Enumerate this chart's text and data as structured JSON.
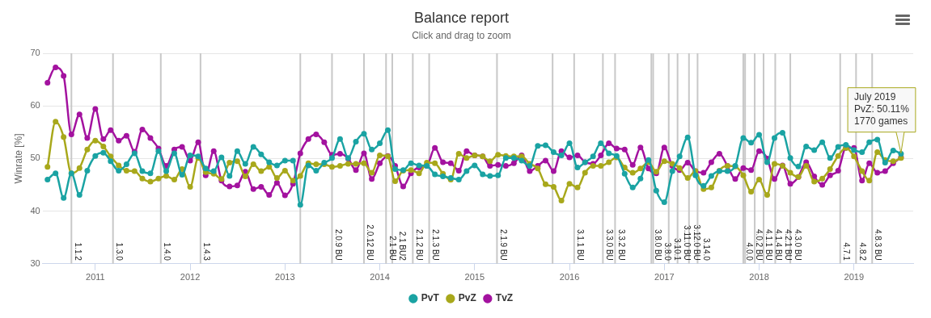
{
  "chart_data": {
    "type": "line",
    "title": "Balance report",
    "subtitle": "Click and drag to zoom",
    "ylabel": "Winrate [%]",
    "x": [
      "2010-07",
      "2010-08",
      "2010-09",
      "2010-10",
      "2010-11",
      "2010-12",
      "2011-01",
      "2011-02",
      "2011-03",
      "2011-04",
      "2011-05",
      "2011-06",
      "2011-07",
      "2011-08",
      "2011-09",
      "2011-10",
      "2011-11",
      "2011-12",
      "2012-01",
      "2012-02",
      "2012-03",
      "2012-04",
      "2012-05",
      "2012-06",
      "2012-07",
      "2012-08",
      "2012-09",
      "2012-10",
      "2012-11",
      "2012-12",
      "2013-01",
      "2013-02",
      "2013-03",
      "2013-04",
      "2013-05",
      "2013-06",
      "2013-07",
      "2013-08",
      "2013-09",
      "2013-10",
      "2013-11",
      "2013-12",
      "2014-01",
      "2014-02",
      "2014-03",
      "2014-04",
      "2014-05",
      "2014-06",
      "2014-07",
      "2014-08",
      "2014-09",
      "2014-10",
      "2014-11",
      "2014-12",
      "2015-01",
      "2015-02",
      "2015-03",
      "2015-04",
      "2015-05",
      "2015-06",
      "2015-07",
      "2015-08",
      "2015-09",
      "2015-10",
      "2015-11",
      "2015-12",
      "2016-01",
      "2016-02",
      "2016-03",
      "2016-04",
      "2016-05",
      "2016-06",
      "2016-07",
      "2016-08",
      "2016-09",
      "2016-10",
      "2016-11",
      "2016-12",
      "2017-01",
      "2017-02",
      "2017-03",
      "2017-04",
      "2017-05",
      "2017-06",
      "2017-07",
      "2017-08",
      "2017-09",
      "2017-10",
      "2017-11",
      "2017-12",
      "2018-01",
      "2018-02",
      "2018-03",
      "2018-04",
      "2018-05",
      "2018-06",
      "2018-07",
      "2018-08",
      "2018-09",
      "2018-10",
      "2018-11",
      "2018-12",
      "2019-01",
      "2019-02",
      "2019-03",
      "2019-04",
      "2019-05",
      "2019-06",
      "2019-07"
    ],
    "series": [
      {
        "name": "PvT",
        "color": "#1aa3a3",
        "values": [
          46.0,
          47.2,
          42.5,
          47.2,
          43.1,
          47.7,
          50.5,
          51.1,
          49.5,
          47.7,
          48.9,
          51.0,
          47.6,
          47.2,
          51.4,
          47.6,
          51.0,
          46.9,
          50.6,
          50.4,
          48.1,
          47.6,
          50.2,
          46.7,
          51.4,
          49.0,
          52.2,
          50.8,
          49.3,
          48.7,
          49.6,
          49.6,
          41.2,
          48.7,
          47.7,
          49.2,
          50.1,
          53.7,
          50.1,
          53.2,
          54.7,
          51.7,
          52.9,
          55.4,
          48.0,
          47.8,
          49.1,
          48.7,
          48.6,
          47.0,
          46.6,
          46.3,
          46.0,
          47.6,
          48.7,
          47.0,
          46.7,
          46.8,
          50.1,
          50.1,
          49.6,
          48.6,
          52.4,
          52.5,
          51.2,
          50.6,
          52.9,
          48.3,
          49.3,
          50.4,
          52.9,
          51.0,
          50.5,
          47.1,
          44.5,
          46.2,
          49.7,
          43.9,
          41.7,
          47.6,
          50.4,
          54.0,
          46.8,
          44.8,
          46.7,
          47.6,
          47.6,
          48.6,
          53.9,
          53.0,
          54.5,
          49.3,
          53.9,
          54.9,
          50.1,
          48.5,
          52.3,
          51.6,
          53.1,
          50.1,
          52.2,
          52.6,
          51.6,
          51.2,
          53.1,
          53.6,
          49.2,
          51.5,
          50.9
        ]
      },
      {
        "name": "PvZ",
        "color": "#a8a81b",
        "values": [
          48.4,
          57.0,
          54.1,
          47.2,
          48.2,
          51.7,
          53.4,
          52.3,
          50.4,
          48.7,
          47.7,
          47.6,
          46.2,
          45.6,
          46.2,
          46.7,
          46.0,
          48.0,
          44.6,
          50.1,
          47.4,
          47.1,
          46.1,
          49.2,
          49.5,
          46.6,
          48.9,
          47.6,
          48.4,
          46.3,
          47.7,
          45.8,
          46.7,
          49.1,
          48.9,
          48.9,
          48.4,
          48.6,
          49.0,
          49.0,
          49.1,
          47.3,
          50.6,
          50.4,
          45.7,
          47.7,
          47.8,
          47.2,
          49.2,
          49.1,
          47.1,
          46.0,
          50.9,
          50.1,
          50.6,
          50.4,
          49.5,
          50.7,
          50.5,
          50.4,
          50.4,
          49.0,
          48.1,
          45.1,
          44.6,
          42.0,
          45.2,
          44.5,
          47.3,
          48.6,
          48.6,
          49.3,
          50.2,
          48.3,
          47.3,
          48.1,
          49.3,
          47.5,
          49.5,
          49.0,
          48.2,
          46.3,
          47.6,
          44.2,
          44.5,
          47.7,
          48.6,
          48.5,
          46.8,
          43.7,
          46.0,
          43.1,
          49.0,
          48.6,
          47.3,
          46.5,
          48.6,
          45.6,
          46.2,
          48.0,
          50.5,
          52.0,
          50.4,
          47.6,
          45.8,
          51.2,
          49.7,
          49.5,
          50.11
        ]
      },
      {
        "name": "TvZ",
        "color": "#a3129f",
        "values": [
          64.4,
          67.3,
          65.7,
          54.6,
          58.4,
          53.9,
          59.4,
          53.7,
          55.4,
          53.4,
          54.3,
          51.3,
          55.5,
          53.9,
          51.9,
          48.6,
          51.7,
          52.2,
          49.6,
          53.1,
          46.8,
          51.4,
          45.8,
          44.7,
          44.9,
          47.5,
          44.2,
          44.6,
          43.1,
          45.4,
          43.0,
          45.2,
          51.0,
          53.7,
          54.6,
          53.1,
          50.7,
          50.9,
          50.0,
          47.8,
          51.0,
          46.1,
          49.1,
          50.5,
          48.6,
          44.7,
          47.2,
          48.3,
          48.6,
          52.0,
          49.3,
          49.1,
          47.7,
          51.4,
          50.6,
          50.4,
          48.6,
          48.8,
          48.6,
          49.1,
          50.6,
          47.6,
          48.6,
          49.6,
          47.6,
          51.4,
          50.2,
          50.6,
          49.3,
          49.0,
          50.6,
          52.9,
          51.9,
          51.7,
          48.8,
          52.1,
          48.1,
          47.2,
          52.1,
          48.6,
          47.8,
          49.2,
          47.6,
          47.3,
          49.3,
          50.9,
          48.6,
          46.1,
          48.2,
          47.8,
          51.4,
          50.0,
          46.1,
          48.7,
          45.2,
          46.5,
          49.3,
          46.6,
          45.0,
          46.8,
          47.7,
          52.0,
          52.0,
          45.8,
          49.1,
          47.3,
          47.6,
          49.1,
          50.2
        ]
      }
    ],
    "xlim": [
      "2010-06-12",
      "2019-08-17"
    ],
    "xticks": [
      "2011",
      "2012",
      "2013",
      "2014",
      "2015",
      "2016",
      "2017",
      "2018",
      "2019"
    ],
    "ylim": [
      30,
      70
    ],
    "yticks": [
      30,
      40,
      50,
      60,
      70
    ],
    "grid": "y",
    "legend": "bottom",
    "marker": "circle",
    "ref_lines": [
      {
        "axis": "x",
        "value": "2010-10-01",
        "label": "1.1.2"
      },
      {
        "axis": "x",
        "value": "2011-03-10",
        "label": "1.3.0"
      },
      {
        "axis": "x",
        "value": "2011-09-10",
        "label": "1.4.0"
      },
      {
        "axis": "x",
        "value": "2012-02-10",
        "label": "1.4.3"
      },
      {
        "axis": "x",
        "value": "2013-03-01"
      },
      {
        "axis": "x",
        "value": "2013-07-01",
        "label": "2.0.9 BU"
      },
      {
        "axis": "x",
        "value": "2013-11-01",
        "label": "2.0.12 BU"
      },
      {
        "axis": "x",
        "value": "2014-01-25",
        "label": "2.1 BU"
      },
      {
        "axis": "x",
        "value": "2014-02-18",
        "label": "2.1 BU2"
      },
      {
        "axis": "x",
        "value": "2014-05-08",
        "label": "2.1.2 BU"
      },
      {
        "axis": "x",
        "value": "2014-07-10",
        "label": "2.1.3 BU"
      },
      {
        "axis": "x",
        "value": "2015-03-28",
        "label": "2.1.9 BU"
      },
      {
        "axis": "x",
        "value": "2015-10-28"
      },
      {
        "axis": "x",
        "value": "2016-01-19",
        "label": "3.1.1 BU"
      },
      {
        "axis": "x",
        "value": "2016-05-09",
        "label": "3.3.0 BU"
      },
      {
        "axis": "x",
        "value": "2016-06-25",
        "label": "3.3.2 BU"
      },
      {
        "axis": "x",
        "value": "2016-11-12",
        "label": "3.8.0 BU"
      },
      {
        "axis": "x",
        "value": "2016-11-19",
        "label": "3.8.0"
      },
      {
        "axis": "x",
        "value": "2017-01-18",
        "label": "3.10.1"
      },
      {
        "axis": "x",
        "value": "2017-02-21",
        "label": "3.11.0 BU"
      },
      {
        "axis": "x",
        "value": "2017-04-06",
        "label": "3.12.0 BU"
      },
      {
        "axis": "x",
        "value": "2017-05-09",
        "label": "3.14.0"
      },
      {
        "axis": "x",
        "value": "2017-11-01",
        "label": "4.0.0"
      },
      {
        "axis": "x",
        "value": "2017-11-08",
        "label": "4.0.2 BU"
      },
      {
        "axis": "x",
        "value": "2017-12-15",
        "label": "4.1.1 BU"
      },
      {
        "axis": "x",
        "value": "2018-01-18",
        "label": "4.1.4 BU"
      },
      {
        "axis": "x",
        "value": "2018-03-04",
        "label": "4.2.1 BU"
      },
      {
        "axis": "x",
        "value": "2018-05-01",
        "label": "4.3.0 BU"
      },
      {
        "axis": "x",
        "value": "2018-11-09",
        "label": "4.7.1"
      },
      {
        "axis": "x",
        "value": "2019-01-09",
        "label": "4.8.2"
      },
      {
        "axis": "x",
        "value": "2019-03-12",
        "label": "4.8.3 BU"
      }
    ],
    "annotations": [
      {
        "text": "July 2019\nPvZ: 50.11%\n1770 games",
        "x": "2019-07",
        "y": 50.11
      }
    ]
  }
}
